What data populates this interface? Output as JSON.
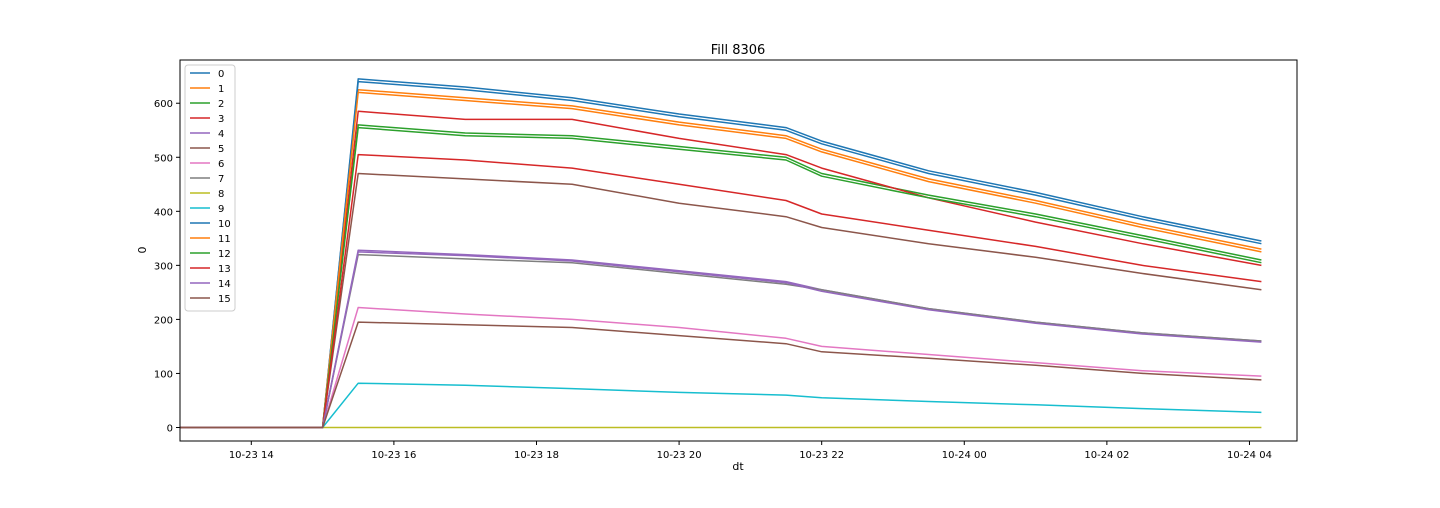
{
  "chart_data": {
    "type": "line",
    "title": "Fill 8306",
    "xlabel": "dt",
    "ylabel": "0",
    "xlim": [
      "10-23 13:00",
      "10-24 04:40"
    ],
    "ylim": [
      -25,
      680
    ],
    "grid": false,
    "legend_position": "top-left",
    "x_tick_labels": [
      "10-23 14",
      "10-23 16",
      "10-23 18",
      "10-23 20",
      "10-23 22",
      "10-24 00",
      "10-24 02",
      "10-24 04"
    ],
    "y_tick_labels": [
      "0",
      "100",
      "200",
      "300",
      "400",
      "500",
      "600"
    ],
    "x": [
      "10-23 13:00",
      "10-23 15:00",
      "10-23 15:30",
      "10-23 17:00",
      "10-23 18:30",
      "10-23 20:00",
      "10-23 21:30",
      "10-23 22:00",
      "10-23 23:30",
      "10-24 01:00",
      "10-24 02:30",
      "10-24 04:10"
    ],
    "series": [
      {
        "name": "0",
        "color": "#1f77b4",
        "values": [
          0,
          0,
          645,
          630,
          610,
          580,
          555,
          530,
          475,
          435,
          390,
          345
        ]
      },
      {
        "name": "1",
        "color": "#ff7f0e",
        "values": [
          0,
          0,
          625,
          610,
          595,
          565,
          540,
          515,
          460,
          420,
          375,
          330
        ]
      },
      {
        "name": "2",
        "color": "#2ca02c",
        "values": [
          0,
          0,
          560,
          545,
          540,
          520,
          500,
          470,
          430,
          395,
          355,
          310
        ]
      },
      {
        "name": "3",
        "color": "#d62728",
        "values": [
          0,
          0,
          585,
          570,
          570,
          535,
          505,
          480,
          425,
          380,
          340,
          300
        ]
      },
      {
        "name": "4",
        "color": "#9467bd",
        "values": [
          0,
          0,
          328,
          320,
          310,
          290,
          270,
          255,
          220,
          195,
          175,
          160
        ]
      },
      {
        "name": "5",
        "color": "#8c564b",
        "values": [
          0,
          0,
          470,
          460,
          450,
          415,
          390,
          370,
          340,
          315,
          285,
          255
        ]
      },
      {
        "name": "6",
        "color": "#e377c2",
        "values": [
          0,
          0,
          222,
          210,
          200,
          185,
          165,
          150,
          135,
          120,
          105,
          95
        ]
      },
      {
        "name": "7",
        "color": "#7f7f7f",
        "values": [
          0,
          0,
          320,
          312,
          305,
          285,
          265,
          255,
          220,
          195,
          175,
          160
        ]
      },
      {
        "name": "8",
        "color": "#bcbd22",
        "values": [
          0,
          0,
          0,
          0,
          0,
          0,
          0,
          0,
          0,
          0,
          0,
          0
        ]
      },
      {
        "name": "9",
        "color": "#17becf",
        "values": [
          0,
          0,
          82,
          78,
          72,
          65,
          60,
          55,
          48,
          42,
          35,
          28
        ]
      },
      {
        "name": "10",
        "color": "#1f77b4",
        "values": [
          0,
          0,
          640,
          625,
          605,
          575,
          550,
          525,
          470,
          430,
          385,
          340
        ]
      },
      {
        "name": "11",
        "color": "#ff7f0e",
        "values": [
          0,
          0,
          620,
          605,
          590,
          560,
          535,
          510,
          455,
          415,
          370,
          325
        ]
      },
      {
        "name": "12",
        "color": "#2ca02c",
        "values": [
          0,
          0,
          555,
          540,
          535,
          515,
          495,
          465,
          425,
          390,
          350,
          305
        ]
      },
      {
        "name": "13",
        "color": "#d62728",
        "values": [
          0,
          0,
          505,
          495,
          480,
          450,
          420,
          395,
          365,
          335,
          300,
          270
        ]
      },
      {
        "name": "14",
        "color": "#9467bd",
        "values": [
          0,
          0,
          325,
          318,
          308,
          288,
          268,
          252,
          218,
          193,
          173,
          158
        ]
      },
      {
        "name": "15",
        "color": "#8c564b",
        "values": [
          0,
          0,
          195,
          190,
          185,
          170,
          155,
          140,
          128,
          115,
          100,
          88
        ]
      }
    ]
  }
}
